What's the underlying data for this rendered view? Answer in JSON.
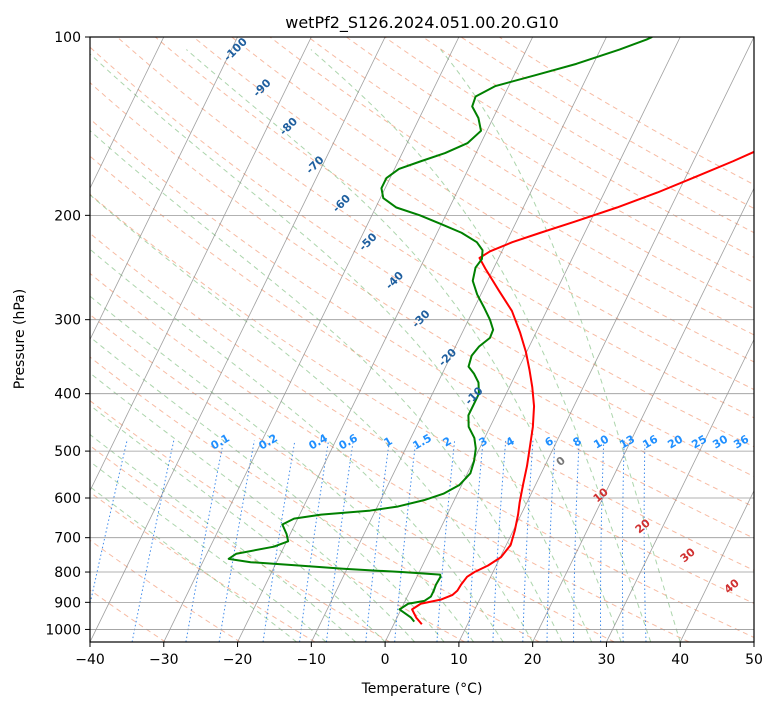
{
  "chart_data": {
    "type": "line",
    "title": "wetPf2_S126.2024.051.00.20.G10",
    "xlabel": "Temperature (°C)",
    "ylabel": "Pressure (hPa)",
    "xlim": [
      -40,
      50
    ],
    "ylim": [
      1050,
      100
    ],
    "y_scale": "log",
    "grid": true,
    "x_ticks": [
      -40,
      -30,
      -20,
      -10,
      0,
      10,
      20,
      30,
      40,
      50
    ],
    "y_ticks": [
      100,
      200,
      300,
      400,
      500,
      600,
      700,
      800,
      900,
      1000
    ],
    "x_tick_labels": [
      "−40",
      "−30",
      "−20",
      "−10",
      "0",
      "10",
      "20",
      "30",
      "40",
      "50"
    ],
    "y_tick_labels": [
      "100",
      "200",
      "300",
      "400",
      "500",
      "600",
      "700",
      "800",
      "900",
      "1000"
    ],
    "series": [
      {
        "color": "#ff0000",
        "points": [
          [
            3.8,
            980
          ],
          [
            2.6,
            955
          ],
          [
            1.5,
            925
          ],
          [
            2.3,
            905
          ],
          [
            4.8,
            890
          ],
          [
            6.0,
            875
          ],
          [
            6.4,
            860
          ],
          [
            6.5,
            840
          ],
          [
            6.8,
            815
          ],
          [
            7.5,
            800
          ],
          [
            8.9,
            780
          ],
          [
            10.1,
            755
          ],
          [
            10.6,
            720
          ],
          [
            10.2,
            680
          ],
          [
            9.6,
            640
          ],
          [
            9.0,
            610
          ],
          [
            8.3,
            570
          ],
          [
            7.6,
            530
          ],
          [
            6.8,
            495
          ],
          [
            5.8,
            455
          ],
          [
            4.6,
            420
          ],
          [
            3.1,
            390
          ],
          [
            1.6,
            365
          ],
          [
            -0.1,
            340
          ],
          [
            -2.2,
            315
          ],
          [
            -4.7,
            290
          ],
          [
            -7.8,
            268
          ],
          [
            -11.1,
            246
          ],
          [
            -12.6,
            236
          ],
          [
            -11.6,
            230
          ],
          [
            -9.2,
            222
          ],
          [
            -6.0,
            214
          ],
          [
            -2.1,
            205
          ],
          [
            2.7,
            194
          ],
          [
            7.2,
            183
          ],
          [
            11.4,
            172
          ],
          [
            15.4,
            162
          ],
          [
            19.3,
            152
          ],
          [
            23.3,
            143
          ],
          [
            27.3,
            133
          ],
          [
            30.3,
            126
          ],
          [
            32.9,
            117
          ],
          [
            35.7,
            110
          ],
          [
            38.8,
            104
          ],
          [
            41.2,
            100
          ]
        ]
      },
      {
        "color": "#008000",
        "points": [
          [
            2.6,
            970
          ],
          [
            1.9,
            955
          ],
          [
            -0.2,
            925
          ],
          [
            0.6,
            905
          ],
          [
            2.6,
            895
          ],
          [
            3.2,
            880
          ],
          [
            3.2,
            860
          ],
          [
            3.1,
            840
          ],
          [
            3.2,
            815
          ],
          [
            3.0,
            808
          ],
          [
            -2.4,
            800
          ],
          [
            -10.5,
            790
          ],
          [
            -16.8,
            780
          ],
          [
            -23.5,
            770
          ],
          [
            -26.7,
            760
          ],
          [
            -26.0,
            745
          ],
          [
            -21.4,
            725
          ],
          [
            -19.8,
            710
          ],
          [
            -20.5,
            690
          ],
          [
            -21.7,
            665
          ],
          [
            -20.5,
            650
          ],
          [
            -17.1,
            640
          ],
          [
            -10.7,
            630
          ],
          [
            -7.2,
            620
          ],
          [
            -4.1,
            605
          ],
          [
            -1.9,
            590
          ],
          [
            -0.3,
            570
          ],
          [
            0.4,
            545
          ],
          [
            0.1,
            520
          ],
          [
            -0.5,
            495
          ],
          [
            -1.4,
            475
          ],
          [
            -2.9,
            455
          ],
          [
            -3.7,
            435
          ],
          [
            -3.7,
            415
          ],
          [
            -3.7,
            400
          ],
          [
            -4.5,
            383
          ],
          [
            -5.7,
            370
          ],
          [
            -6.9,
            360
          ],
          [
            -7.2,
            345
          ],
          [
            -6.8,
            333
          ],
          [
            -5.9,
            322
          ],
          [
            -6.0,
            312
          ],
          [
            -7.1,
            300
          ],
          [
            -8.6,
            287
          ],
          [
            -10.5,
            272
          ],
          [
            -12.0,
            258
          ],
          [
            -12.5,
            245
          ],
          [
            -12.2,
            237
          ],
          [
            -12.7,
            229
          ],
          [
            -14.0,
            222
          ],
          [
            -16.7,
            214
          ],
          [
            -20.0,
            207
          ],
          [
            -23.5,
            200
          ],
          [
            -27.2,
            194
          ],
          [
            -29.6,
            187
          ],
          [
            -30.5,
            180
          ],
          [
            -30.5,
            173
          ],
          [
            -29.4,
            167
          ],
          [
            -26.9,
            162
          ],
          [
            -24.2,
            157
          ],
          [
            -21.8,
            151
          ],
          [
            -20.8,
            144
          ],
          [
            -22.0,
            137
          ],
          [
            -23.6,
            131
          ],
          [
            -23.8,
            126
          ],
          [
            -21.8,
            121
          ],
          [
            -17.1,
            116
          ],
          [
            -12.3,
            111
          ],
          [
            -7.4,
            105
          ],
          [
            -4.4,
            101
          ],
          [
            -3.8,
            100
          ]
        ]
      }
    ],
    "dry_adiabat_labels": [
      "-100",
      "-90",
      "-80",
      "-70",
      "-60",
      "-50",
      "-40",
      "-30",
      "-20",
      "-10"
    ],
    "mixing_ratio_labels": [
      "0.1",
      "0.2",
      "0.4",
      "0.6",
      "1",
      "1.5",
      "2",
      "3",
      "4",
      "6",
      "8",
      "10",
      "13",
      "16",
      "20",
      "25",
      "30",
      "36"
    ],
    "moist_adiabat_labels": [
      "0",
      "10",
      "20",
      "30",
      "40"
    ]
  }
}
